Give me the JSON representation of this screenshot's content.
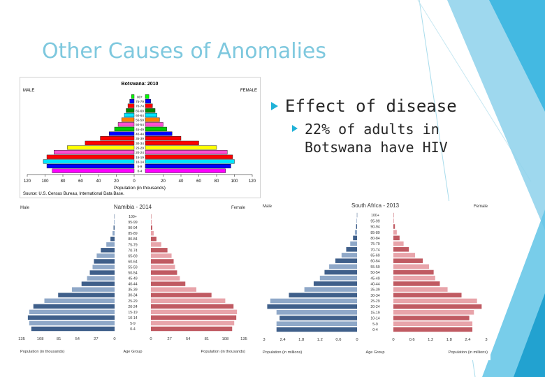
{
  "slide": {
    "title": "Other Causes of Anomalies",
    "bullet_main": "Effect of disease",
    "bullet_sub": "22% of adults in Botswana have HIV"
  },
  "chart_data": [
    {
      "type": "bar",
      "subtype": "population-pyramid",
      "title": "Botswana: 2010",
      "left_label": "MALE",
      "right_label": "FEMALE",
      "xlabel": "Population (in thousands)",
      "source": "Source: U.S. Census Bureau, International Data Base.",
      "xlim": [
        0,
        120
      ],
      "xticks": [
        "120",
        "100",
        "80",
        "60",
        "40",
        "20",
        "0",
        "20",
        "40",
        "60",
        "80",
        "100",
        "120"
      ],
      "categories": [
        "0-4",
        "5-9",
        "10-14",
        "15-19",
        "20-24",
        "25-29",
        "30-34",
        "35-39",
        "40-44",
        "45-49",
        "50-54",
        "55-59",
        "60-64",
        "65-69",
        "70-74",
        "75-79",
        "80+"
      ],
      "colors": [
        "#ff00ff",
        "#0000ff",
        "#00e5ff",
        "#ff0000",
        "#ff4fd0",
        "#ffff00",
        "#ff0000",
        "#ff0000",
        "#0000ff",
        "#00cc00",
        "#ff4fd0",
        "#ff8000",
        "#00e5ff",
        "#008800",
        "#ff0000",
        "#0000ff",
        "#00ff00"
      ],
      "series": [
        {
          "name": "Male",
          "values": [
            92,
            98,
            102,
            98,
            90,
            75,
            55,
            38,
            28,
            22,
            18,
            14,
            11,
            9,
            7,
            5,
            3
          ]
        },
        {
          "name": "Female",
          "values": [
            90,
            96,
            100,
            98,
            92,
            80,
            60,
            40,
            30,
            24,
            20,
            16,
            13,
            11,
            8,
            6,
            4
          ]
        }
      ]
    },
    {
      "type": "bar",
      "subtype": "population-pyramid",
      "title": "Namibia - 2014",
      "left_label": "Male",
      "right_label": "Female",
      "xlabel_left": "Population (in thousands)",
      "xlabel_center": "Age Group",
      "xlabel_right": "Population (in thousands)",
      "xlim": [
        0,
        135
      ],
      "xticks": [
        "135",
        "108",
        "81",
        "54",
        "27",
        "0",
        "0",
        "27",
        "54",
        "81",
        "108",
        "135"
      ],
      "categories": [
        "0-4",
        "5-9",
        "10-14",
        "15-19",
        "20-24",
        "25-29",
        "30-34",
        "35-39",
        "40-44",
        "45-49",
        "50-54",
        "55-59",
        "60-64",
        "65-69",
        "70-74",
        "75-79",
        "80-84",
        "85-89",
        "90-94",
        "95-99",
        "100+"
      ],
      "male_color": "#3f5f8a",
      "male_color_alt": "#8fa8c8",
      "female_color": "#c05a62",
      "female_color_alt": "#e8a4aa",
      "series": [
        {
          "name": "Male",
          "values": [
            121,
            124,
            126,
            124,
            118,
            102,
            82,
            62,
            48,
            40,
            36,
            32,
            30,
            26,
            20,
            12,
            6,
            3,
            1.5,
            0.8,
            0.4
          ]
        },
        {
          "name": "Female",
          "values": [
            118,
            121,
            124,
            125,
            120,
            108,
            88,
            66,
            50,
            42,
            38,
            35,
            33,
            30,
            24,
            15,
            8,
            4,
            2,
            1,
            0.5
          ]
        }
      ]
    },
    {
      "type": "bar",
      "subtype": "population-pyramid",
      "title": "South Africa - 2013",
      "left_label": "Male",
      "right_label": "Female",
      "xlabel_left": "Population (in millions)",
      "xlabel_center": "Age Group",
      "xlabel_right": "Population (in millions)",
      "xlim": [
        0,
        3
      ],
      "xticks": [
        "3",
        "2.4",
        "1.8",
        "1.2",
        "0.6",
        "0",
        "0",
        "0.6",
        "1.2",
        "1.8",
        "2.4",
        "3"
      ],
      "categories": [
        "0-4",
        "5-9",
        "10-14",
        "15-19",
        "20-24",
        "25-29",
        "30-34",
        "35-39",
        "40-44",
        "45-49",
        "50-54",
        "55-59",
        "60-64",
        "65-69",
        "70-74",
        "75-79",
        "80-84",
        "85-89",
        "90-94",
        "95-99",
        "100+"
      ],
      "male_color": "#3f5f8a",
      "male_color_alt": "#8fa8c8",
      "female_color": "#c05a62",
      "female_color_alt": "#e8a4aa",
      "series": [
        {
          "name": "Male",
          "values": [
            2.6,
            2.6,
            2.5,
            2.6,
            2.9,
            2.8,
            2.2,
            1.7,
            1.4,
            1.2,
            1.05,
            0.9,
            0.7,
            0.5,
            0.35,
            0.22,
            0.13,
            0.07,
            0.03,
            0.015,
            0.005
          ]
        },
        {
          "name": "Female",
          "values": [
            2.55,
            2.55,
            2.45,
            2.6,
            2.85,
            2.7,
            2.2,
            1.75,
            1.5,
            1.35,
            1.3,
            1.15,
            0.95,
            0.7,
            0.5,
            0.33,
            0.2,
            0.11,
            0.05,
            0.02,
            0.01
          ]
        }
      ]
    }
  ]
}
